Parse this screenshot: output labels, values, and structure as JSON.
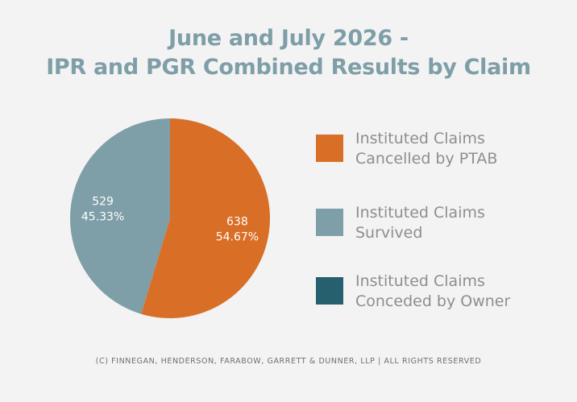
{
  "chart_data": {
    "type": "pie",
    "title_line1": "June and July 2026 -",
    "title_line2": "IPR and PGR Combined Results by Claim",
    "slices": [
      {
        "label_line1": "Instituted Claims",
        "label_line2": "Cancelled by PTAB",
        "value": 638,
        "percent_label": "54.67%",
        "color": "#d96f27"
      },
      {
        "label_line1": "Instituted Claims",
        "label_line2": "Survived",
        "value": 529,
        "percent_label": "45.33%",
        "color": "#7e9ea8"
      },
      {
        "label_line1": "Instituted Claims",
        "label_line2": "Conceded by Owner",
        "value": 0,
        "percent_label": "",
        "color": "#265f6e"
      }
    ],
    "legend_position": "right"
  },
  "footer": "(C) FINNEGAN, HENDERSON, FARABOW, GARRETT & DUNNER, LLP | ALL RIGHTS RESERVED"
}
